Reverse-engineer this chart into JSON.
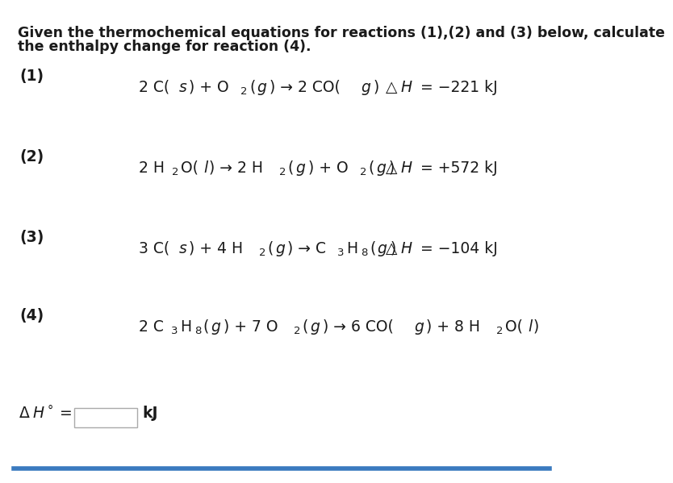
{
  "bg_color": "#ffffff",
  "text_color": "#1a1a1a",
  "title_line1": "Given the thermochemical equations for reactions (1),(2) and (3) below, calculate",
  "title_line2": "the enthalpy change for reaction (4).",
  "reactions": [
    {
      "label": "(1)",
      "eq_parts": [
        {
          "text": "2 C(",
          "style": "normal"
        },
        {
          "text": "s",
          "style": "italic"
        },
        {
          "text": ") + O",
          "style": "normal"
        },
        {
          "text": "2",
          "style": "sub"
        },
        {
          "text": "(",
          "style": "normal"
        },
        {
          "text": "g",
          "style": "italic"
        },
        {
          "text": ") → 2 CO(",
          "style": "normal"
        },
        {
          "text": "g",
          "style": "italic"
        },
        {
          "text": ")",
          "style": "normal"
        }
      ],
      "enthalpy_parts": [
        {
          "text": "△",
          "style": "normal"
        },
        {
          "text": "H",
          "style": "italic"
        },
        {
          "text": " = −221 kJ",
          "style": "normal"
        }
      ]
    },
    {
      "label": "(2)",
      "eq_parts": [
        {
          "text": "2 H",
          "style": "normal"
        },
        {
          "text": "2",
          "style": "sub"
        },
        {
          "text": "O(",
          "style": "normal"
        },
        {
          "text": "l",
          "style": "italic"
        },
        {
          "text": ") → 2 H",
          "style": "normal"
        },
        {
          "text": "2",
          "style": "sub"
        },
        {
          "text": "(",
          "style": "normal"
        },
        {
          "text": "g",
          "style": "italic"
        },
        {
          "text": ") + O",
          "style": "normal"
        },
        {
          "text": "2",
          "style": "sub"
        },
        {
          "text": "(",
          "style": "normal"
        },
        {
          "text": "g",
          "style": "italic"
        },
        {
          "text": ")",
          "style": "normal"
        }
      ],
      "enthalpy_parts": [
        {
          "text": "△",
          "style": "normal"
        },
        {
          "text": "H",
          "style": "italic"
        },
        {
          "text": " = +572 kJ",
          "style": "normal"
        }
      ]
    },
    {
      "label": "(3)",
      "eq_parts": [
        {
          "text": "3 C(",
          "style": "normal"
        },
        {
          "text": "s",
          "style": "italic"
        },
        {
          "text": ") + 4 H",
          "style": "normal"
        },
        {
          "text": "2",
          "style": "sub"
        },
        {
          "text": "(",
          "style": "normal"
        },
        {
          "text": "g",
          "style": "italic"
        },
        {
          "text": ") → C",
          "style": "normal"
        },
        {
          "text": "3",
          "style": "sub"
        },
        {
          "text": "H",
          "style": "normal"
        },
        {
          "text": "8",
          "style": "sub"
        },
        {
          "text": "(",
          "style": "normal"
        },
        {
          "text": "g",
          "style": "italic"
        },
        {
          "text": ")",
          "style": "normal"
        }
      ],
      "enthalpy_parts": [
        {
          "text": "△",
          "style": "normal"
        },
        {
          "text": "H",
          "style": "italic"
        },
        {
          "text": " = −104 kJ",
          "style": "normal"
        }
      ]
    },
    {
      "label": "(4)",
      "eq_parts": [
        {
          "text": "2 C",
          "style": "normal"
        },
        {
          "text": "3",
          "style": "sub"
        },
        {
          "text": "H",
          "style": "normal"
        },
        {
          "text": "8",
          "style": "sub"
        },
        {
          "text": "(",
          "style": "normal"
        },
        {
          "text": "g",
          "style": "italic"
        },
        {
          "text": ") + 7 O",
          "style": "normal"
        },
        {
          "text": "2",
          "style": "sub"
        },
        {
          "text": "(",
          "style": "normal"
        },
        {
          "text": "g",
          "style": "italic"
        },
        {
          "text": ") → 6 CO(",
          "style": "normal"
        },
        {
          "text": "g",
          "style": "italic"
        },
        {
          "text": ") + 8 H",
          "style": "normal"
        },
        {
          "text": "2",
          "style": "sub"
        },
        {
          "text": "O(",
          "style": "normal"
        },
        {
          "text": "l",
          "style": "italic"
        },
        {
          "text": ")",
          "style": "normal"
        }
      ],
      "enthalpy_parts": null
    }
  ],
  "answer_label_parts": [
    {
      "text": "Δ",
      "style": "normal"
    },
    {
      "text": "H",
      "style": "italic"
    },
    {
      "text": "°",
      "style": "super"
    },
    {
      "text": " =",
      "style": "normal"
    }
  ],
  "answer_unit": "kJ",
  "bottom_line_color": "#3a7abf",
  "font_size_title": 12.5,
  "font_size_label": 13.5,
  "font_size_eq": 13.5,
  "font_size_sub": 9.5,
  "font_size_answer": 13.5
}
